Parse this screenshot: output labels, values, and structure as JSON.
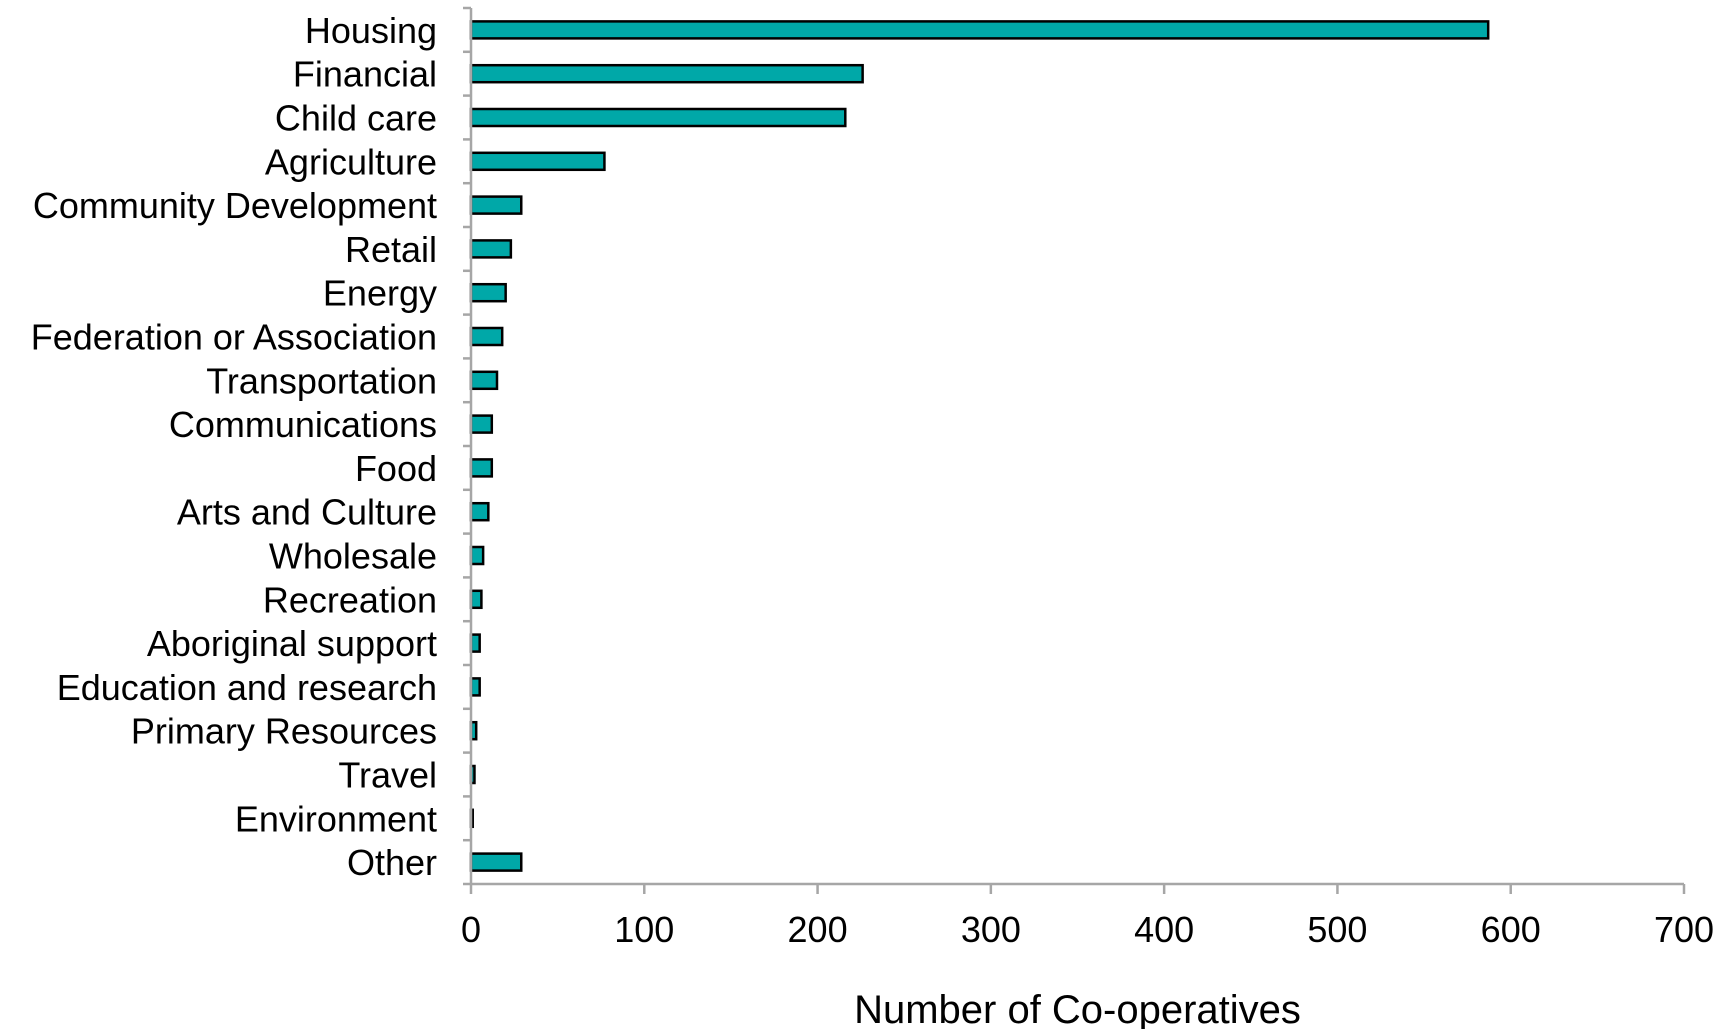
{
  "chart_data": {
    "type": "bar",
    "orientation": "horizontal",
    "categories": [
      "Housing",
      "Financial",
      "Child care",
      "Agriculture",
      "Community Development",
      "Retail",
      "Energy",
      "Federation or Association",
      "Transportation",
      "Communications",
      "Food",
      "Arts and Culture",
      "Wholesale",
      "Recreation",
      "Aboriginal support",
      "Education and research",
      "Primary Resources",
      "Travel",
      "Environment",
      "Other"
    ],
    "values": [
      587,
      226,
      216,
      77,
      29,
      23,
      20,
      18,
      15,
      12,
      12,
      10,
      7,
      6,
      5,
      5,
      3,
      2,
      1,
      29
    ],
    "xlabel": "Number of Co-operatives",
    "ylabel": "",
    "xlim": [
      0,
      700
    ],
    "xticks": [
      "0",
      "100",
      "200",
      "300",
      "400",
      "500",
      "600",
      "700"
    ],
    "grid": false,
    "legend": "none",
    "bar_color": "#00a8a8"
  }
}
